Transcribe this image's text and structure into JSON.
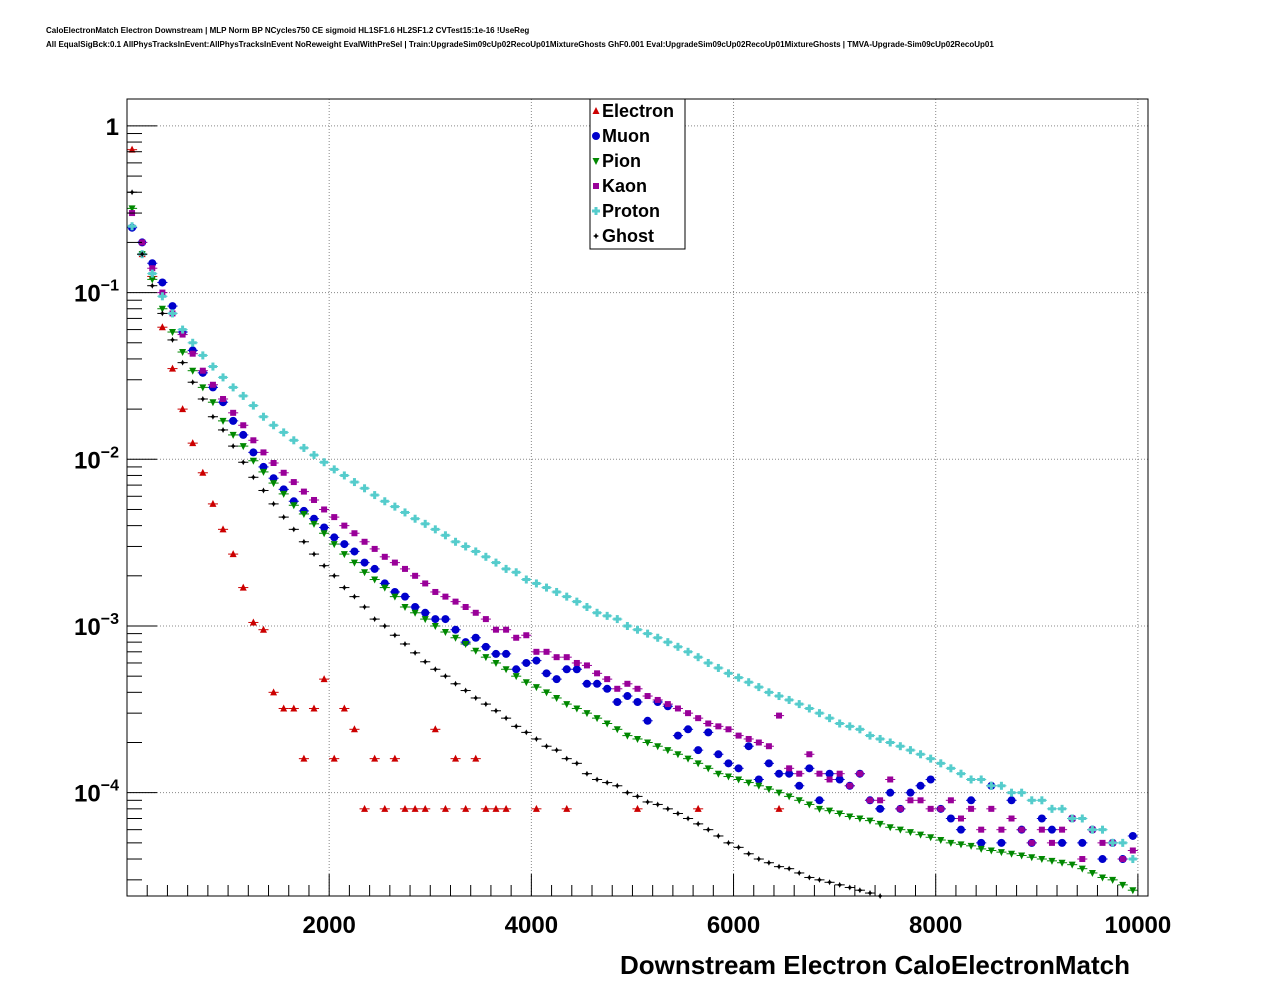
{
  "header": {
    "line1": "CaloElectronMatch Electron Downstream | MLP Norm BP NCycles750 CE sigmoid HL1SF1.6 HL2SF1.2 CVTest15:1e-16 !UseReg",
    "line2": "All EqualSigBck:0.1 AllPhysTracksInEvent:AllPhysTracksInEvent NoReweight EvalWithPreSel | Train:UpgradeSim09cUp02RecoUp01MixtureGhosts GhF0.001 Eval:UpgradeSim09cUp02RecoUp01MixtureGhosts | TMVA-Upgrade-Sim09cUp02RecoUp01"
  },
  "chart_data": {
    "type": "scatter",
    "title": "",
    "xlabel": "Downstream Electron CaloElectronMatch",
    "ylabel": "",
    "xlim": [
      0,
      10100
    ],
    "ylim": [
      2.4e-05,
      1.45
    ],
    "yscale": "log",
    "grid": true,
    "legend_position": "top-center",
    "x_ticks": [
      {
        "value": 2000,
        "label": "2000"
      },
      {
        "value": 4000,
        "label": "4000"
      },
      {
        "value": 6000,
        "label": "6000"
      },
      {
        "value": 8000,
        "label": "8000"
      },
      {
        "value": 10000,
        "label": "10000"
      }
    ],
    "y_ticks": [
      {
        "value": 1,
        "base": "1",
        "exp": ""
      },
      {
        "value": 0.1,
        "base": "10",
        "exp": "−1"
      },
      {
        "value": 0.01,
        "base": "10",
        "exp": "−2"
      },
      {
        "value": 0.001,
        "base": "10",
        "exp": "−3"
      },
      {
        "value": 0.0001,
        "base": "10",
        "exp": "−4"
      }
    ],
    "series": [
      {
        "name": "Electron",
        "color": "#cc0000",
        "marker": "triangle-up",
        "x": [
          50,
          150,
          250,
          350,
          450,
          550,
          650,
          750,
          850,
          950,
          1050,
          1150,
          1250,
          1350,
          1450,
          1550,
          1650,
          1750,
          1850,
          1950,
          2050,
          2150,
          2250,
          2350,
          2450,
          2550,
          2650,
          2750,
          2850,
          2950,
          3050,
          3150,
          3250,
          3350,
          3450,
          3550,
          3650,
          3750,
          4050,
          4350,
          5050,
          5650,
          6450
        ],
        "y": [
          0.72,
          0.17,
          0.125,
          0.062,
          0.035,
          0.02,
          0.0125,
          0.0083,
          0.0054,
          0.0038,
          0.0027,
          0.0017,
          0.00105,
          0.00095,
          0.0004,
          0.00032,
          0.00032,
          0.00016,
          0.00032,
          0.00048,
          0.00016,
          0.00032,
          0.00024,
          8e-05,
          0.00016,
          8e-05,
          0.00016,
          8e-05,
          8e-05,
          8e-05,
          0.00024,
          8e-05,
          0.00016,
          8e-05,
          0.00016,
          8e-05,
          8e-05,
          8e-05,
          8e-05,
          8e-05,
          8e-05,
          8e-05,
          8e-05
        ]
      },
      {
        "name": "Muon",
        "color": "#0000cc",
        "marker": "circle",
        "x": [
          50,
          150,
          250,
          350,
          450,
          550,
          650,
          750,
          850,
          950,
          1050,
          1150,
          1250,
          1350,
          1450,
          1550,
          1650,
          1750,
          1850,
          1950,
          2050,
          2150,
          2250,
          2350,
          2450,
          2550,
          2650,
          2750,
          2850,
          2950,
          3050,
          3150,
          3250,
          3350,
          3450,
          3550,
          3650,
          3750,
          3850,
          3950,
          4050,
          4150,
          4250,
          4350,
          4450,
          4550,
          4650,
          4750,
          4850,
          4950,
          5050,
          5150,
          5250,
          5350,
          5450,
          5550,
          5650,
          5750,
          5850,
          5950,
          6050,
          6150,
          6250,
          6350,
          6450,
          6550,
          6650,
          6750,
          6850,
          6950,
          7050,
          7150,
          7250,
          7350,
          7450,
          7550,
          7650,
          7750,
          7850,
          7950,
          8050,
          8150,
          8250,
          8350,
          8450,
          8550,
          8650,
          8750,
          8850,
          8950,
          9050,
          9150,
          9250,
          9350,
          9450,
          9550,
          9650,
          9750,
          9850,
          9950
        ],
        "y": [
          0.245,
          0.2,
          0.15,
          0.115,
          0.083,
          0.058,
          0.045,
          0.033,
          0.027,
          0.022,
          0.017,
          0.014,
          0.011,
          0.009,
          0.0077,
          0.0066,
          0.0056,
          0.0049,
          0.0044,
          0.0039,
          0.0034,
          0.0031,
          0.0028,
          0.0024,
          0.0022,
          0.0018,
          0.0016,
          0.0015,
          0.0013,
          0.0012,
          0.0011,
          0.0011,
          0.00095,
          0.0008,
          0.00085,
          0.00075,
          0.00068,
          0.00068,
          0.00055,
          0.0006,
          0.00062,
          0.00052,
          0.00048,
          0.00055,
          0.00055,
          0.00045,
          0.00045,
          0.00042,
          0.00035,
          0.00038,
          0.00035,
          0.00027,
          0.00035,
          0.00033,
          0.00022,
          0.00024,
          0.00018,
          0.00023,
          0.00017,
          0.00015,
          0.00014,
          0.00019,
          0.00012,
          0.00015,
          0.00013,
          0.00013,
          0.00011,
          0.00014,
          9e-05,
          0.00013,
          0.00012,
          0.00011,
          0.00013,
          9e-05,
          8e-05,
          0.0001,
          8e-05,
          0.0001,
          0.00011,
          0.00012,
          8e-05,
          7e-05,
          6e-05,
          9e-05,
          5e-05,
          0.00011,
          5e-05,
          9e-05,
          6e-05,
          5e-05,
          7e-05,
          6e-05,
          5e-05,
          7e-05,
          5e-05,
          6e-05,
          4e-05,
          5e-05,
          4e-05,
          5.5e-05
        ]
      },
      {
        "name": "Pion",
        "color": "#008800",
        "marker": "triangle-down",
        "x": [
          50,
          150,
          250,
          350,
          450,
          550,
          650,
          750,
          850,
          950,
          1050,
          1150,
          1250,
          1350,
          1450,
          1550,
          1650,
          1750,
          1850,
          1950,
          2050,
          2150,
          2250,
          2350,
          2450,
          2550,
          2650,
          2750,
          2850,
          2950,
          3050,
          3150,
          3250,
          3350,
          3450,
          3550,
          3650,
          3750,
          3850,
          3950,
          4050,
          4150,
          4250,
          4350,
          4450,
          4550,
          4650,
          4750,
          4850,
          4950,
          5050,
          5150,
          5250,
          5350,
          5450,
          5550,
          5650,
          5750,
          5850,
          5950,
          6050,
          6150,
          6250,
          6350,
          6450,
          6550,
          6650,
          6750,
          6850,
          6950,
          7050,
          7150,
          7250,
          7350,
          7450,
          7550,
          7650,
          7750,
          7850,
          7950,
          8050,
          8150,
          8250,
          8350,
          8450,
          8550,
          8650,
          8750,
          8850,
          8950,
          9050,
          9150,
          9250,
          9350,
          9450,
          9550,
          9650,
          9750,
          9850,
          9950
        ],
        "y": [
          0.32,
          0.17,
          0.12,
          0.08,
          0.058,
          0.044,
          0.034,
          0.027,
          0.022,
          0.017,
          0.014,
          0.012,
          0.0098,
          0.0084,
          0.0072,
          0.0062,
          0.0053,
          0.0047,
          0.0041,
          0.0036,
          0.0031,
          0.0027,
          0.0024,
          0.0021,
          0.0019,
          0.0017,
          0.0015,
          0.0013,
          0.0012,
          0.0011,
          0.001,
          0.00092,
          0.00085,
          0.00078,
          0.00071,
          0.00065,
          0.0006,
          0.00055,
          0.0005,
          0.00046,
          0.00043,
          0.0004,
          0.00037,
          0.00034,
          0.00032,
          0.0003,
          0.00028,
          0.00026,
          0.00024,
          0.00022,
          0.00021,
          0.0002,
          0.00019,
          0.00018,
          0.00017,
          0.00016,
          0.00015,
          0.00014,
          0.00013,
          0.000125,
          0.00012,
          0.000115,
          0.00011,
          0.000105,
          0.0001,
          9.5e-05,
          9e-05,
          8.5e-05,
          8e-05,
          7.8e-05,
          7.5e-05,
          7.2e-05,
          7e-05,
          6.8e-05,
          6.5e-05,
          6.2e-05,
          6e-05,
          5.8e-05,
          5.6e-05,
          5.4e-05,
          5.2e-05,
          5e-05,
          4.9e-05,
          4.8e-05,
          4.6e-05,
          4.5e-05,
          4.4e-05,
          4.3e-05,
          4.2e-05,
          4.1e-05,
          4e-05,
          3.9e-05,
          3.8e-05,
          3.7e-05,
          3.5e-05,
          3.3e-05,
          3.1e-05,
          3e-05,
          2.8e-05,
          2.6e-05
        ]
      },
      {
        "name": "Kaon",
        "color": "#990099",
        "marker": "square",
        "x": [
          50,
          150,
          250,
          350,
          450,
          550,
          650,
          750,
          850,
          950,
          1050,
          1150,
          1250,
          1350,
          1450,
          1550,
          1650,
          1750,
          1850,
          1950,
          2050,
          2150,
          2250,
          2350,
          2450,
          2550,
          2650,
          2750,
          2850,
          2950,
          3050,
          3150,
          3250,
          3350,
          3450,
          3550,
          3650,
          3750,
          3850,
          3950,
          4050,
          4150,
          4250,
          4350,
          4450,
          4550,
          4650,
          4750,
          4850,
          4950,
          5050,
          5150,
          5250,
          5350,
          5450,
          5550,
          5650,
          5750,
          5850,
          5950,
          6050,
          6150,
          6250,
          6350,
          6450,
          6550,
          6650,
          6750,
          6850,
          6950,
          7050,
          7150,
          7250,
          7350,
          7450,
          7550,
          7650,
          7750,
          7850,
          7950,
          8050,
          8150,
          8250,
          8350,
          8450,
          8550,
          8650,
          8750,
          8850,
          8950,
          9050,
          9150,
          9250,
          9350,
          9450,
          9550,
          9650,
          9750,
          9850,
          9950
        ],
        "y": [
          0.3,
          0.2,
          0.14,
          0.1,
          0.075,
          0.056,
          0.043,
          0.034,
          0.028,
          0.023,
          0.019,
          0.016,
          0.013,
          0.011,
          0.0095,
          0.0083,
          0.0073,
          0.0064,
          0.0057,
          0.005,
          0.0045,
          0.004,
          0.0036,
          0.0032,
          0.0029,
          0.0026,
          0.0024,
          0.0022,
          0.002,
          0.0018,
          0.0016,
          0.0015,
          0.0014,
          0.0013,
          0.0012,
          0.0011,
          0.00095,
          0.00095,
          0.00085,
          0.00088,
          0.0007,
          0.0007,
          0.00065,
          0.00065,
          0.0006,
          0.00058,
          0.00052,
          0.00048,
          0.00042,
          0.00045,
          0.00042,
          0.00038,
          0.00036,
          0.00034,
          0.00032,
          0.0003,
          0.00028,
          0.00026,
          0.00025,
          0.00024,
          0.00022,
          0.00021,
          0.0002,
          0.00019,
          0.00029,
          0.00014,
          0.00013,
          0.00017,
          0.00013,
          0.00012,
          0.00013,
          0.00011,
          0.00013,
          9e-05,
          9e-05,
          0.00012,
          8e-05,
          9e-05,
          9e-05,
          8e-05,
          8e-05,
          9e-05,
          7e-05,
          8e-05,
          6e-05,
          8e-05,
          6e-05,
          7e-05,
          6e-05,
          5e-05,
          6e-05,
          5e-05,
          6e-05,
          7e-05,
          4e-05,
          6e-05,
          5e-05,
          5e-05,
          4e-05,
          4.5e-05
        ]
      },
      {
        "name": "Proton",
        "color": "#55cccc",
        "marker": "cross",
        "x": [
          50,
          150,
          250,
          350,
          450,
          550,
          650,
          750,
          850,
          950,
          1050,
          1150,
          1250,
          1350,
          1450,
          1550,
          1650,
          1750,
          1850,
          1950,
          2050,
          2150,
          2250,
          2350,
          2450,
          2550,
          2650,
          2750,
          2850,
          2950,
          3050,
          3150,
          3250,
          3350,
          3450,
          3550,
          3650,
          3750,
          3850,
          3950,
          4050,
          4150,
          4250,
          4350,
          4450,
          4550,
          4650,
          4750,
          4850,
          4950,
          5050,
          5150,
          5250,
          5350,
          5450,
          5550,
          5650,
          5750,
          5850,
          5950,
          6050,
          6150,
          6250,
          6350,
          6450,
          6550,
          6650,
          6750,
          6850,
          6950,
          7050,
          7150,
          7250,
          7350,
          7450,
          7550,
          7650,
          7750,
          7850,
          7950,
          8050,
          8150,
          8250,
          8350,
          8450,
          8550,
          8650,
          8750,
          8850,
          8950,
          9050,
          9150,
          9250,
          9350,
          9450,
          9550,
          9650,
          9750,
          9850,
          9950
        ],
        "y": [
          0.25,
          0.17,
          0.13,
          0.095,
          0.075,
          0.06,
          0.05,
          0.042,
          0.036,
          0.031,
          0.027,
          0.024,
          0.021,
          0.018,
          0.016,
          0.0145,
          0.013,
          0.0117,
          0.0106,
          0.0096,
          0.0087,
          0.008,
          0.0073,
          0.0067,
          0.0061,
          0.0056,
          0.0052,
          0.0048,
          0.0044,
          0.0041,
          0.0038,
          0.0035,
          0.0032,
          0.003,
          0.0028,
          0.0026,
          0.0024,
          0.0022,
          0.0021,
          0.0019,
          0.0018,
          0.0017,
          0.0016,
          0.0015,
          0.0014,
          0.0013,
          0.0012,
          0.00115,
          0.0011,
          0.001,
          0.00095,
          0.0009,
          0.00085,
          0.0008,
          0.00075,
          0.0007,
          0.00065,
          0.0006,
          0.00056,
          0.00052,
          0.00049,
          0.00046,
          0.00043,
          0.0004,
          0.00038,
          0.00036,
          0.00034,
          0.00032,
          0.0003,
          0.00028,
          0.00026,
          0.00025,
          0.00024,
          0.00022,
          0.00021,
          0.0002,
          0.00019,
          0.00018,
          0.00017,
          0.00016,
          0.00015,
          0.00014,
          0.00013,
          0.00012,
          0.00012,
          0.00011,
          0.00011,
          0.0001,
          0.0001,
          9e-05,
          9e-05,
          8e-05,
          8e-05,
          7e-05,
          7e-05,
          6e-05,
          6e-05,
          5e-05,
          5e-05,
          4e-05
        ]
      },
      {
        "name": "Ghost",
        "color": "#000000",
        "marker": "star",
        "x": [
          50,
          150,
          250,
          350,
          450,
          550,
          650,
          750,
          850,
          950,
          1050,
          1150,
          1250,
          1350,
          1450,
          1550,
          1650,
          1750,
          1850,
          1950,
          2050,
          2150,
          2250,
          2350,
          2450,
          2550,
          2650,
          2750,
          2850,
          2950,
          3050,
          3150,
          3250,
          3350,
          3450,
          3550,
          3650,
          3750,
          3850,
          3950,
          4050,
          4150,
          4250,
          4350,
          4450,
          4550,
          4650,
          4750,
          4850,
          4950,
          5050,
          5150,
          5250,
          5350,
          5450,
          5550,
          5650,
          5750,
          5850,
          5950,
          6050,
          6150,
          6250,
          6350,
          6450,
          6550,
          6650,
          6750,
          6850,
          6950,
          7050,
          7150,
          7250,
          7350,
          7450
        ],
        "y": [
          0.4,
          0.17,
          0.11,
          0.075,
          0.052,
          0.038,
          0.029,
          0.023,
          0.018,
          0.015,
          0.012,
          0.0096,
          0.0078,
          0.0065,
          0.0054,
          0.0045,
          0.0038,
          0.0032,
          0.0027,
          0.0023,
          0.002,
          0.0017,
          0.0015,
          0.0013,
          0.0011,
          0.001,
          0.00088,
          0.00078,
          0.00069,
          0.00061,
          0.00055,
          0.0005,
          0.00045,
          0.00041,
          0.00037,
          0.00034,
          0.00031,
          0.00028,
          0.00025,
          0.00023,
          0.00021,
          0.00019,
          0.00018,
          0.00016,
          0.00015,
          0.00013,
          0.00012,
          0.000115,
          0.00011,
          0.0001,
          9.5e-05,
          8.8e-05,
          8.5e-05,
          8e-05,
          7.5e-05,
          7e-05,
          6.5e-05,
          6e-05,
          5.5e-05,
          5e-05,
          4.7e-05,
          4.3e-05,
          4e-05,
          3.8e-05,
          3.6e-05,
          3.5e-05,
          3.3e-05,
          3.1e-05,
          3e-05,
          2.9e-05,
          2.8e-05,
          2.7e-05,
          2.6e-05,
          2.5e-05,
          2.4e-05
        ]
      }
    ]
  }
}
